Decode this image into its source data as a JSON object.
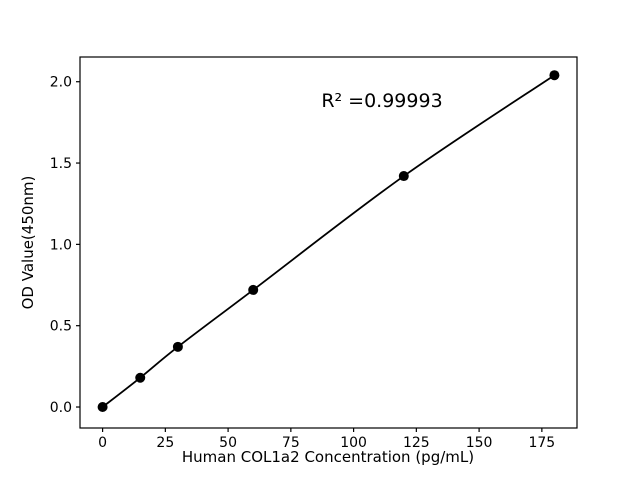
{
  "chart_data": {
    "type": "scatter",
    "title": "",
    "xlabel": "Human COL1a2 Concentration (pg/mL)",
    "ylabel": "OD Value(450nm)",
    "annotation": "R² =0.99993",
    "series": [
      {
        "name": "standard-curve",
        "x": [
          0,
          15,
          30,
          60,
          120,
          180
        ],
        "y": [
          0.0,
          0.18,
          0.37,
          0.72,
          1.42,
          2.04
        ]
      }
    ],
    "xticks": [
      "0",
      "25",
      "50",
      "75",
      "100",
      "125",
      "150",
      "175"
    ],
    "yticks": [
      "0.0",
      "0.5",
      "1.0",
      "1.5",
      "2.0"
    ],
    "xlim": [
      -9,
      189
    ],
    "ylim": [
      -0.129,
      2.152
    ],
    "grid": false,
    "legend": "none",
    "line_color": "#000000",
    "marker_color": "#000000",
    "frame_color": "#000000",
    "background": "#ffffff"
  }
}
